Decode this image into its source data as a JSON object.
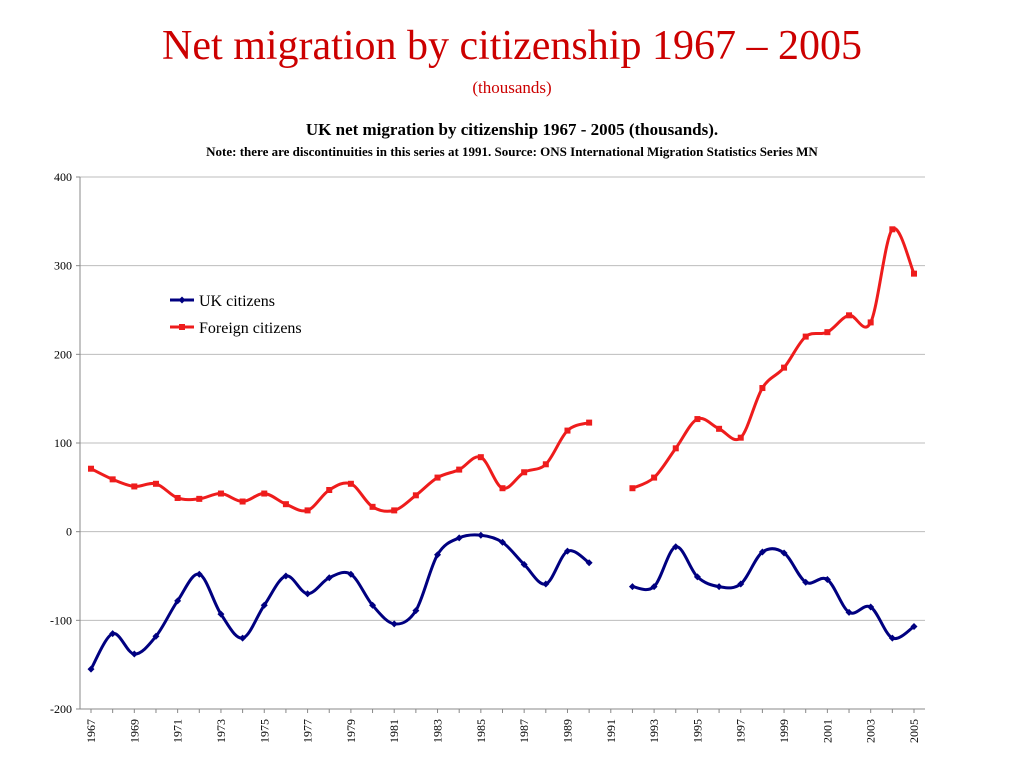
{
  "header": {
    "title": "Net migration by citizenship 1967 – 2005",
    "subtitle": "(thousands)"
  },
  "chart_data": {
    "type": "line",
    "title": "UK net migration by citizenship 1967 - 2005  (thousands).",
    "subtitle": "Note: there are discontinuities in this series at 1991. Source: ONS International Migration Statistics Series MN",
    "xlabel": "",
    "ylabel": "",
    "ylim": [
      -200,
      400
    ],
    "yticks": [
      -200,
      -100,
      0,
      100,
      200,
      300,
      400
    ],
    "x": [
      1967,
      1968,
      1969,
      1970,
      1971,
      1972,
      1973,
      1974,
      1975,
      1976,
      1977,
      1978,
      1979,
      1980,
      1981,
      1982,
      1983,
      1984,
      1985,
      1986,
      1987,
      1988,
      1989,
      1990,
      1991,
      1992,
      1993,
      1994,
      1995,
      1996,
      1997,
      1998,
      1999,
      2000,
      2001,
      2002,
      2003,
      2004,
      2005
    ],
    "xtick_labels": [
      "1967",
      "1969",
      "1971",
      "1973",
      "1975",
      "1977",
      "1979",
      "1981",
      "1983",
      "1985",
      "1987",
      "1989",
      "1991",
      "1993",
      "1995",
      "1997",
      "1999",
      "2001",
      "2003",
      "2005"
    ],
    "grid": true,
    "legend_position": "top-left",
    "series": [
      {
        "name": "UK citizens",
        "color": "#000080",
        "marker": "diamond",
        "values": [
          -155,
          -115,
          -138,
          -118,
          -78,
          -48,
          -93,
          -120,
          -83,
          -50,
          -70,
          -52,
          -48,
          -83,
          -104,
          -89,
          -26,
          -7,
          -4,
          -12,
          -37,
          -59,
          -22,
          -35,
          null,
          -62,
          -62,
          -17,
          -51,
          -62,
          -59,
          -23,
          -24,
          -57,
          -54,
          -91,
          -85,
          -120,
          -107
        ]
      },
      {
        "name": "Foreign citizens",
        "color": "#ee1c1c",
        "marker": "square",
        "values": [
          71,
          59,
          51,
          54,
          38,
          37,
          43,
          34,
          43,
          31,
          24,
          47,
          54,
          28,
          24,
          41,
          61,
          70,
          84,
          49,
          67,
          76,
          114,
          123,
          null,
          49,
          61,
          94,
          127,
          116,
          106,
          162,
          185,
          220,
          225,
          244,
          236,
          341,
          291
        ]
      }
    ]
  }
}
